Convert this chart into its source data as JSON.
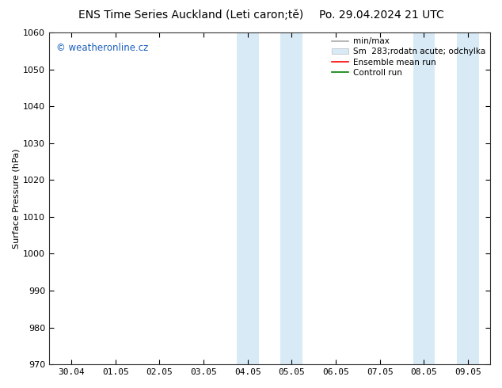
{
  "title_left": "ENS Time Series Auckland (Leti caron;tě)",
  "title_right": "Po. 29.04.2024 21 UTC",
  "ylabel": "Surface Pressure (hPa)",
  "ylim": [
    970,
    1060
  ],
  "yticks": [
    970,
    980,
    990,
    1000,
    1010,
    1020,
    1030,
    1040,
    1050,
    1060
  ],
  "xtick_labels": [
    "30.04",
    "01.05",
    "02.05",
    "03.05",
    "04.05",
    "05.05",
    "06.05",
    "07.05",
    "08.05",
    "09.05"
  ],
  "xtick_positions": [
    0,
    1,
    2,
    3,
    4,
    5,
    6,
    7,
    8,
    9
  ],
  "xlim": [
    -0.5,
    9.5
  ],
  "shaded_regions": [
    {
      "xstart": 3.75,
      "xend": 4.25,
      "color": "#d8eaf6"
    },
    {
      "xstart": 4.75,
      "xend": 5.25,
      "color": "#d8eaf6"
    },
    {
      "xstart": 7.75,
      "xend": 8.25,
      "color": "#d8eaf6"
    },
    {
      "xstart": 8.75,
      "xend": 9.25,
      "color": "#d8eaf6"
    }
  ],
  "watermark_text": "© weatheronline.cz",
  "watermark_color": "#1a5fbd",
  "legend_entries": [
    {
      "label": "min/max",
      "color": "#aaaaaa",
      "lw": 1.2,
      "ls": "-",
      "type": "line"
    },
    {
      "label": "Sm  283;rodatn acute; odchylka",
      "color": "#d8eaf6",
      "lw": 8,
      "ls": "-",
      "type": "patch"
    },
    {
      "label": "Ensemble mean run",
      "color": "red",
      "lw": 1.2,
      "ls": "-",
      "type": "line"
    },
    {
      "label": "Controll run",
      "color": "green",
      "lw": 1.2,
      "ls": "-",
      "type": "line"
    }
  ],
  "bg_color": "#ffffff",
  "tick_color": "#333333",
  "spine_color": "#333333",
  "font_size": 8,
  "title_font_size": 10,
  "ylabel_font_size": 8
}
